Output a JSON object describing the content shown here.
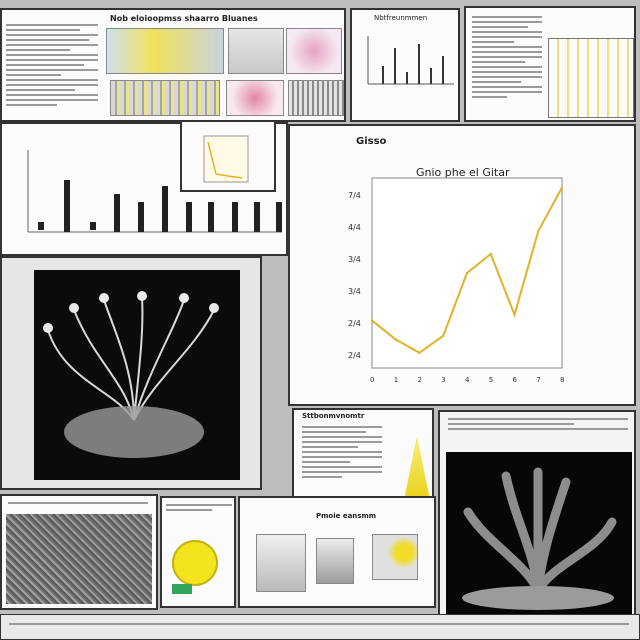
{
  "main_chart": {
    "header": "Gisso",
    "title": "Gnio phe el Gitar",
    "y_ticks": [
      "7/4",
      "4/4",
      "3/4",
      "3/4",
      "2/4",
      "2/4"
    ],
    "x_ticks": [
      "0",
      "1",
      "2",
      "3",
      "4",
      "5",
      "6",
      "7",
      "8"
    ],
    "line_color": "#e2b225"
  },
  "chart_data": {
    "type": "line",
    "title": "Gnio phe el Gitar",
    "x": [
      0,
      1,
      2,
      3,
      4,
      5,
      6,
      7,
      8
    ],
    "values": [
      0.25,
      0.15,
      0.08,
      0.17,
      0.5,
      0.6,
      0.28,
      0.72,
      0.95
    ],
    "ylim": [
      0,
      1
    ],
    "series": [
      {
        "values": [
          0.25,
          0.15,
          0.08,
          0.17,
          0.5,
          0.6,
          0.28,
          0.72,
          0.95
        ]
      }
    ]
  },
  "top_left": {
    "title": "Nob eloioopmss shaarro Bluanes"
  },
  "top_center": {
    "title": "Nbtfreunmmen"
  },
  "mid_right": {
    "title": "Sttbonmvnomtr"
  },
  "bottom_center": {
    "title": "Pmoie eansmm"
  },
  "colors": {
    "yellow": "#f3d92a",
    "pink": "#e9b5cf",
    "dark": "#0c0c0c"
  }
}
